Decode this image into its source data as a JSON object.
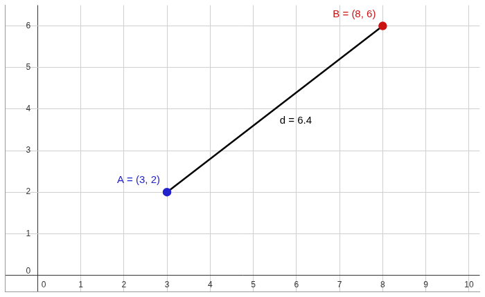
{
  "chart_data": {
    "type": "line",
    "x": [
      3,
      8
    ],
    "values": [
      2,
      6
    ],
    "point_labels": [
      "A = (3, 2)",
      "B = (8, 6)"
    ],
    "colors": [
      "#2222cc",
      "#cc1111"
    ],
    "marker": "circle",
    "annotation": "d = 6.4",
    "xlim": [
      -0.75,
      10.25
    ],
    "ylim": [
      -0.4,
      6.5
    ],
    "xticks": [
      0,
      1,
      2,
      3,
      4,
      5,
      6,
      7,
      8,
      9,
      10
    ],
    "yticks": [
      0,
      1,
      2,
      3,
      4,
      5,
      6
    ],
    "grid": true
  }
}
